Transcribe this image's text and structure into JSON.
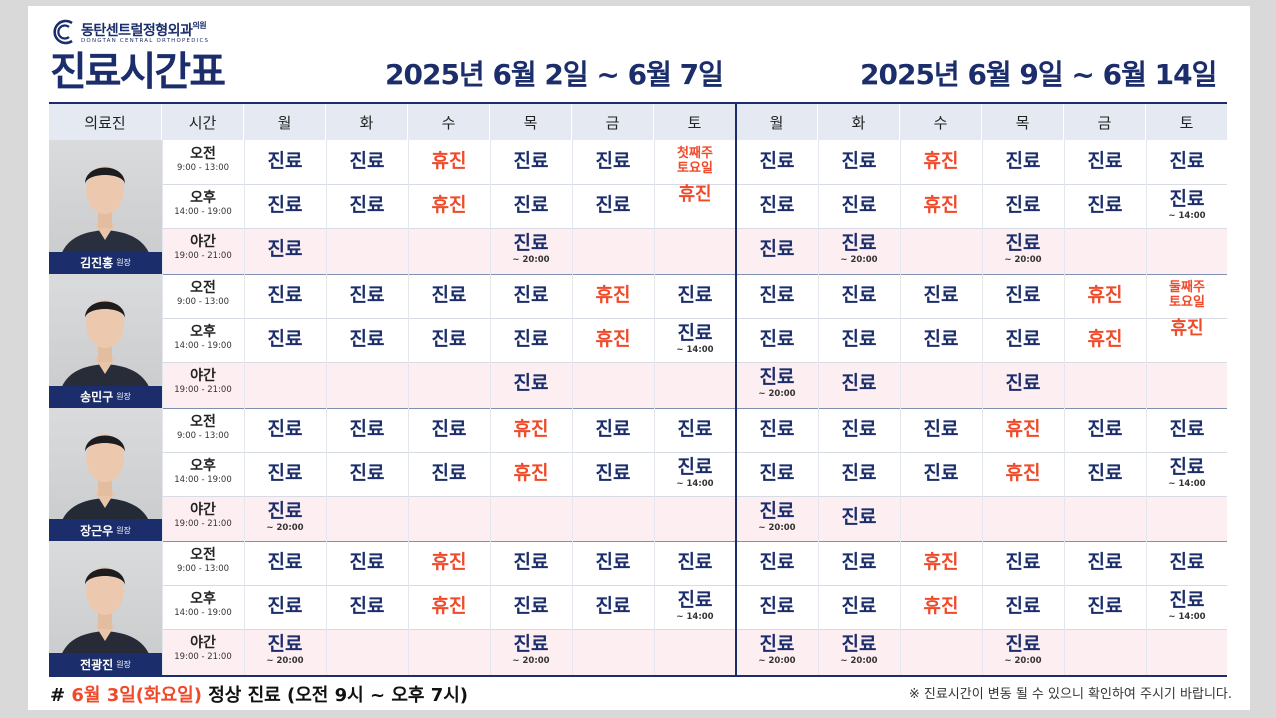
{
  "logo": {
    "name_kr": "동탄센트럴정형외과",
    "suffix": "의원",
    "name_en": "DONGTAN CENTRAL ORTHOPEDICS"
  },
  "title": "진료시간표",
  "periods": [
    "2025년 6월 2일 ~ 6월 7일",
    "2025년 6월 9일 ~ 6월 14일"
  ],
  "headers": {
    "doctor": "의료진",
    "time": "시간",
    "days": [
      "월",
      "화",
      "수",
      "목",
      "금",
      "토",
      "월",
      "화",
      "수",
      "목",
      "금",
      "토"
    ]
  },
  "doctors": [
    {
      "name": "김진홍",
      "role": "원장",
      "rows": [
        {
          "slot": "오전",
          "hours": "9:00 - 13:00",
          "cells": [
            [
              "진료"
            ],
            [
              "진료"
            ],
            [
              "휴진"
            ],
            [
              "진료"
            ],
            [
              "진료"
            ],
            [
              "note",
              "첫째주",
              "토요일"
            ],
            [
              "진료"
            ],
            [
              "진료"
            ],
            [
              "휴진"
            ],
            [
              "진료"
            ],
            [
              "진료"
            ],
            [
              "진료"
            ]
          ]
        },
        {
          "slot": "오후",
          "hours": "14:00 - 19:00",
          "cells": [
            [
              "진료"
            ],
            [
              "진료"
            ],
            [
              "휴진"
            ],
            [
              "진료"
            ],
            [
              "진료"
            ],
            [
              "notebig",
              "휴진"
            ],
            [
              "진료"
            ],
            [
              "진료"
            ],
            [
              "휴진"
            ],
            [
              "진료"
            ],
            [
              "진료"
            ],
            [
              "진료",
              "~ 14:00"
            ]
          ]
        },
        {
          "slot": "야간",
          "hours": "19:00 - 21:00",
          "cells": [
            [
              "진료"
            ],
            [
              ""
            ],
            [
              ""
            ],
            [
              "진료",
              "~ 20:00"
            ],
            [
              ""
            ],
            [
              ""
            ],
            [
              "진료"
            ],
            [
              "진료",
              "~ 20:00"
            ],
            [
              ""
            ],
            [
              "진료",
              "~ 20:00"
            ],
            [
              ""
            ],
            [
              ""
            ]
          ]
        }
      ]
    },
    {
      "name": "송민구",
      "role": "원장",
      "rows": [
        {
          "slot": "오전",
          "hours": "9:00 - 13:00",
          "cells": [
            [
              "진료"
            ],
            [
              "진료"
            ],
            [
              "진료"
            ],
            [
              "진료"
            ],
            [
              "휴진"
            ],
            [
              "진료"
            ],
            [
              "진료"
            ],
            [
              "진료"
            ],
            [
              "진료"
            ],
            [
              "진료"
            ],
            [
              "휴진"
            ],
            [
              "note",
              "둘째주",
              "토요일"
            ]
          ]
        },
        {
          "slot": "오후",
          "hours": "14:00 - 19:00",
          "cells": [
            [
              "진료"
            ],
            [
              "진료"
            ],
            [
              "진료"
            ],
            [
              "진료"
            ],
            [
              "휴진"
            ],
            [
              "진료",
              "~ 14:00"
            ],
            [
              "진료"
            ],
            [
              "진료"
            ],
            [
              "진료"
            ],
            [
              "진료"
            ],
            [
              "휴진"
            ],
            [
              "notebig",
              "휴진"
            ]
          ]
        },
        {
          "slot": "야간",
          "hours": "19:00 - 21:00",
          "cells": [
            [
              ""
            ],
            [
              ""
            ],
            [
              ""
            ],
            [
              "진료"
            ],
            [
              ""
            ],
            [
              ""
            ],
            [
              "진료",
              "~ 20:00"
            ],
            [
              "진료"
            ],
            [
              ""
            ],
            [
              "진료"
            ],
            [
              ""
            ],
            [
              ""
            ]
          ]
        }
      ]
    },
    {
      "name": "장근우",
      "role": "원장",
      "rows": [
        {
          "slot": "오전",
          "hours": "9:00 - 13:00",
          "cells": [
            [
              "진료"
            ],
            [
              "진료"
            ],
            [
              "진료"
            ],
            [
              "휴진"
            ],
            [
              "진료"
            ],
            [
              "진료"
            ],
            [
              "진료"
            ],
            [
              "진료"
            ],
            [
              "진료"
            ],
            [
              "휴진"
            ],
            [
              "진료"
            ],
            [
              "진료"
            ]
          ]
        },
        {
          "slot": "오후",
          "hours": "14:00 - 19:00",
          "cells": [
            [
              "진료"
            ],
            [
              "진료"
            ],
            [
              "진료"
            ],
            [
              "휴진"
            ],
            [
              "진료"
            ],
            [
              "진료",
              "~ 14:00"
            ],
            [
              "진료"
            ],
            [
              "진료"
            ],
            [
              "진료"
            ],
            [
              "휴진"
            ],
            [
              "진료"
            ],
            [
              "진료",
              "~ 14:00"
            ]
          ]
        },
        {
          "slot": "야간",
          "hours": "19:00 - 21:00",
          "cells": [
            [
              "진료",
              "~ 20:00"
            ],
            [
              ""
            ],
            [
              ""
            ],
            [
              ""
            ],
            [
              ""
            ],
            [
              ""
            ],
            [
              "진료",
              "~ 20:00"
            ],
            [
              "진료"
            ],
            [
              ""
            ],
            [
              ""
            ],
            [
              ""
            ],
            [
              ""
            ]
          ]
        }
      ]
    },
    {
      "name": "전광진",
      "role": "원장",
      "rows": [
        {
          "slot": "오전",
          "hours": "9:00 - 13:00",
          "cells": [
            [
              "진료"
            ],
            [
              "진료"
            ],
            [
              "휴진"
            ],
            [
              "진료"
            ],
            [
              "진료"
            ],
            [
              "진료"
            ],
            [
              "진료"
            ],
            [
              "진료"
            ],
            [
              "휴진"
            ],
            [
              "진료"
            ],
            [
              "진료"
            ],
            [
              "진료"
            ]
          ]
        },
        {
          "slot": "오후",
          "hours": "14:00 - 19:00",
          "cells": [
            [
              "진료"
            ],
            [
              "진료"
            ],
            [
              "휴진"
            ],
            [
              "진료"
            ],
            [
              "진료"
            ],
            [
              "진료",
              "~ 14:00"
            ],
            [
              "진료"
            ],
            [
              "진료"
            ],
            [
              "휴진"
            ],
            [
              "진료"
            ],
            [
              "진료"
            ],
            [
              "진료",
              "~ 14:00"
            ]
          ]
        },
        {
          "slot": "야간",
          "hours": "19:00 - 21:00",
          "cells": [
            [
              "진료",
              "~ 20:00"
            ],
            [
              ""
            ],
            [
              ""
            ],
            [
              "진료",
              "~ 20:00"
            ],
            [
              ""
            ],
            [
              ""
            ],
            [
              "진료",
              "~ 20:00"
            ],
            [
              "진료",
              "~ 20:00"
            ],
            [
              ""
            ],
            [
              "진료",
              "~ 20:00"
            ],
            [
              ""
            ],
            [
              ""
            ]
          ]
        }
      ]
    }
  ],
  "footer": {
    "hash": "#",
    "highlight": "6월 3일(화요일)",
    "rest": "정상 진료 (오전 9시 ~ 오후 7시)",
    "note": "※ 진료시간이 변동 될 수 있으니 확인하여 주시기 바랍니다."
  },
  "colors": {
    "navy": "#1b2d6b",
    "off": "#f04a2a",
    "header_bg": "#e4e9f2",
    "night_bg": "#fdeef1"
  }
}
